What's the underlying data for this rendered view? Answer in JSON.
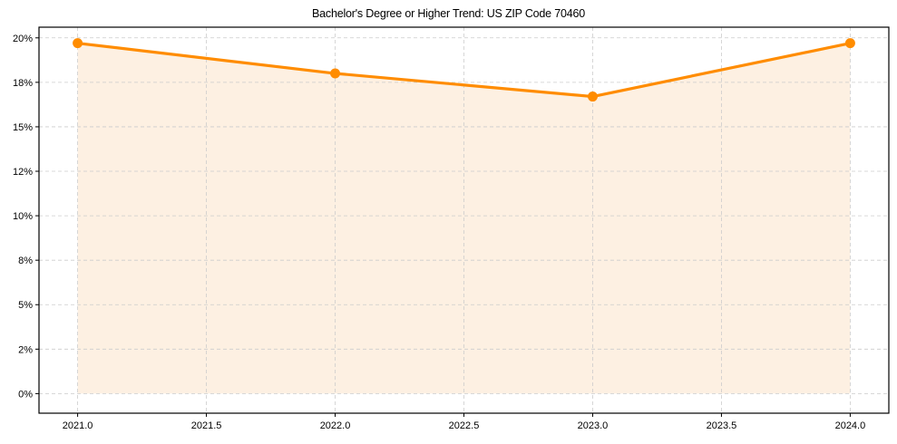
{
  "chart_data": {
    "type": "line",
    "title": "Bachelor's Degree or Higher Trend: US ZIP Code 70460",
    "xlabel": "",
    "ylabel": "",
    "x": [
      2021,
      2022,
      2023,
      2024
    ],
    "series": [
      {
        "name": "Bachelor's Degree or Higher (%)",
        "values": [
          19.7,
          18.0,
          16.7,
          19.7
        ]
      }
    ],
    "x_ticks": [
      "2021.0",
      "2021.5",
      "2022.0",
      "2022.5",
      "2023.0",
      "2023.5",
      "2024.0"
    ],
    "x_tick_values": [
      2021.0,
      2021.5,
      2022.0,
      2022.5,
      2023.0,
      2023.5,
      2024.0
    ],
    "y_ticks": [
      "0%",
      "2%",
      "5%",
      "8%",
      "10%",
      "12%",
      "15%",
      "18%",
      "20%"
    ],
    "y_tick_values": [
      0,
      2.5,
      5,
      7.5,
      10,
      12.5,
      15,
      17.5,
      20
    ],
    "xlim": [
      2020.85,
      2024.15
    ],
    "ylim": [
      -1.1,
      20.6
    ],
    "grid": true,
    "fill_under_line": true,
    "legend": null,
    "colors": {
      "line": "#ff8c00",
      "fill": "#fdf0e2",
      "grid": "#cccccc",
      "axes": "#000000"
    }
  }
}
